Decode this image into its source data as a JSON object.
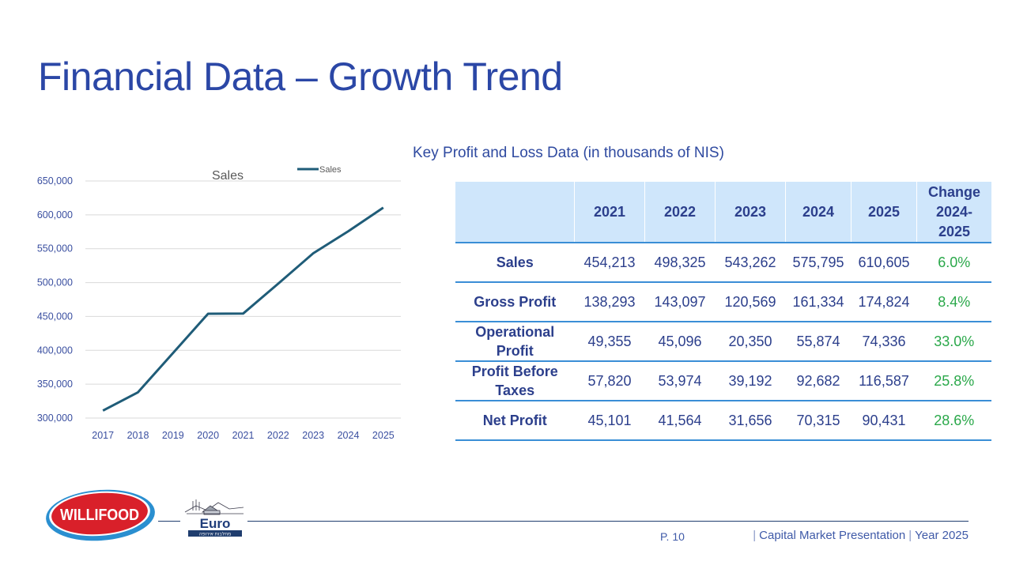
{
  "slide": {
    "title": "Financial Data – Growth Trend",
    "subtitle": "Key Profit and Loss Data (in thousands of NIS)"
  },
  "chart_data": {
    "type": "line",
    "title": "Sales",
    "legend": {
      "entries": [
        "Sales"
      ],
      "placement": "top-right"
    },
    "categories": [
      "2017",
      "2018",
      "2019",
      "2020",
      "2021",
      "2022",
      "2023",
      "2024",
      "2025"
    ],
    "series": [
      {
        "name": "Sales",
        "color": "#1f5c78",
        "values": [
          311000,
          338000,
          396000,
          454000,
          454213,
          498325,
          543262,
          575795,
          610605
        ]
      }
    ],
    "ylim": [
      300000,
      650000
    ],
    "yticks": [
      300000,
      350000,
      400000,
      450000,
      500000,
      550000,
      600000,
      650000
    ],
    "ytick_labels": [
      "300,000",
      "350,000",
      "400,000",
      "450,000",
      "500,000",
      "550,000",
      "600,000",
      "650,000"
    ],
    "xlabel": "",
    "ylabel": "",
    "grid": true
  },
  "table": {
    "headers": [
      "",
      "2021",
      "2022",
      "2023",
      "2024",
      "2025",
      "Change 2024-2025"
    ],
    "header_change_lines": [
      "Change",
      "2024-",
      "2025"
    ],
    "rows": [
      {
        "label": "Sales",
        "values": [
          "454,213",
          "498,325",
          "543,262",
          "575,795",
          "610,605"
        ],
        "change": "6.0%"
      },
      {
        "label": "Gross Profit",
        "values": [
          "138,293",
          "143,097",
          "120,569",
          "161,334",
          "174,824"
        ],
        "change": "8.4%"
      },
      {
        "label_lines": [
          "Operational",
          "Profit"
        ],
        "values": [
          "49,355",
          "45,096",
          "20,350",
          "55,874",
          "74,336"
        ],
        "change": "33.0%"
      },
      {
        "label_lines": [
          "Profit Before",
          "Taxes"
        ],
        "values": [
          "57,820",
          "53,974",
          "39,192",
          "92,682",
          "116,587"
        ],
        "change": "25.8%"
      },
      {
        "label": "Net Profit",
        "values": [
          "45,101",
          "41,564",
          "31,656",
          "70,315",
          "90,431"
        ],
        "change": "28.6%"
      }
    ]
  },
  "footer": {
    "page": "P. 10",
    "presentation": "Capital Market Presentation",
    "year": "Year 2025",
    "separator": "|"
  },
  "logos": {
    "willifood": "WILLIFOOD",
    "euro": "Euro",
    "euro_tagline": "מחלבות אירופה"
  },
  "colors": {
    "title": "#2b47a6",
    "header_bg": "#cfe6fb",
    "row_border": "#3a8ed6",
    "positive_change": "#2aa84a",
    "line": "#1f5c78"
  }
}
